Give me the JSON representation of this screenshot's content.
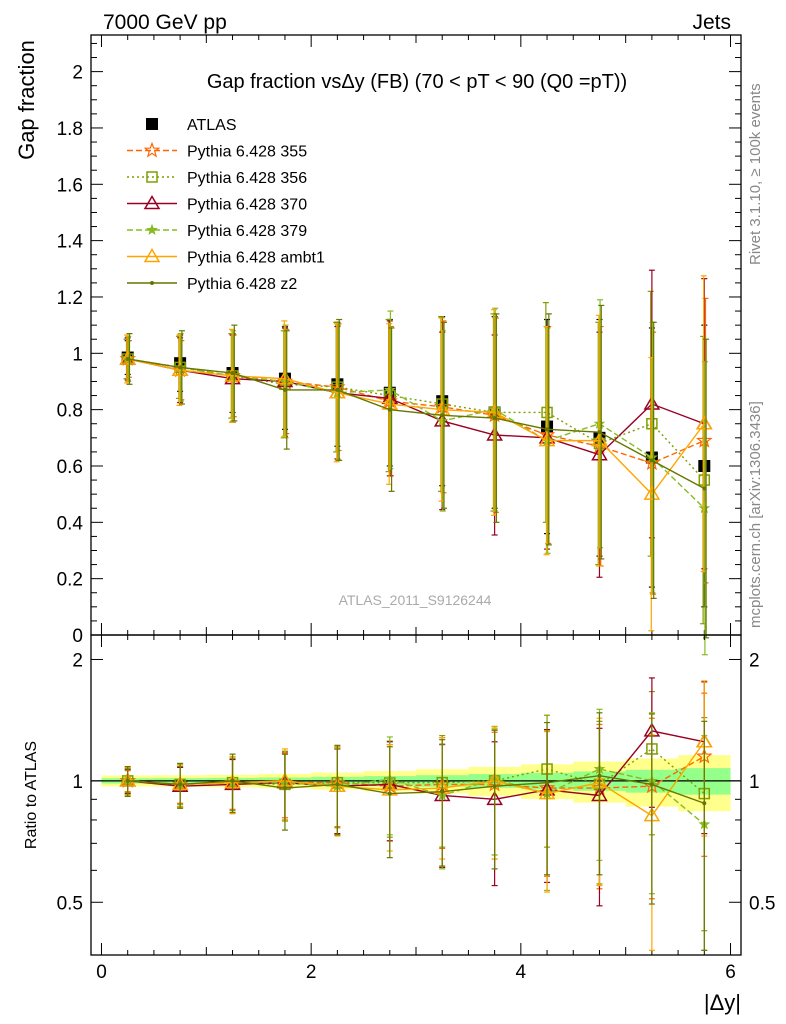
{
  "header": {
    "left": "7000 GeV pp",
    "right": "Jets"
  },
  "side_labels": {
    "rivet": "Rivet 3.1.10, ≥ 100k events",
    "mcplots": "mcplots.cern.ch [arXiv:1306.3436]"
  },
  "chart_data": [
    {
      "type": "line",
      "title": "Gap fraction vsΔy (FB) (70 < pT <  90 (Q0 =pT))",
      "xlabel": "|Δy|",
      "ylabel": "Gap fraction",
      "xlim": [
        -0.1,
        6.1
      ],
      "ylim": [
        0,
        2.13
      ],
      "yticks": [
        0,
        0.2,
        0.4,
        0.6,
        0.8,
        1,
        1.2,
        1.4,
        1.6,
        1.8,
        2
      ],
      "ytick_labels": [
        "0",
        "0.2",
        "0.4",
        "0.6",
        "0.8",
        "1",
        "1.2",
        "1.4",
        "1.6",
        "1.8",
        "2"
      ],
      "watermark": "ATLAS_2011_S9126244",
      "legend_position": "top-left",
      "x": [
        0.25,
        0.75,
        1.25,
        1.75,
        2.25,
        2.75,
        3.25,
        3.75,
        4.25,
        4.75,
        5.25,
        5.75
      ],
      "series": [
        {
          "name": "ATLAS",
          "color": "#000000",
          "style": "data",
          "marker": "square",
          "values": [
            0.985,
            0.965,
            0.93,
            0.91,
            0.89,
            0.86,
            0.83,
            0.79,
            0.74,
            0.7,
            0.63,
            0.6
          ]
        },
        {
          "name": "Pythia 6.428 355",
          "color": "#ff6600",
          "style": "dashed",
          "marker": "star",
          "values": [
            0.98,
            0.94,
            0.92,
            0.9,
            0.88,
            0.83,
            0.81,
            0.78,
            0.71,
            0.67,
            0.61,
            0.69
          ]
        },
        {
          "name": "Pythia 6.428 356",
          "color": "#7f9f00",
          "style": "dotted",
          "marker": "open-square",
          "values": [
            0.98,
            0.95,
            0.92,
            0.89,
            0.88,
            0.85,
            0.82,
            0.79,
            0.79,
            0.68,
            0.75,
            0.55
          ]
        },
        {
          "name": "Pythia 6.428 370",
          "color": "#990022",
          "style": "solid",
          "marker": "open-triangle",
          "values": [
            0.98,
            0.94,
            0.91,
            0.9,
            0.86,
            0.84,
            0.76,
            0.71,
            0.7,
            0.64,
            0.82,
            0.75
          ]
        },
        {
          "name": "Pythia 6.428 379",
          "color": "#88bb22",
          "style": "dashed",
          "marker": "small-star",
          "values": [
            0.98,
            0.95,
            0.92,
            0.9,
            0.86,
            0.87,
            0.76,
            0.8,
            0.69,
            0.75,
            0.63,
            0.45
          ]
        },
        {
          "name": "Pythia 6.428 ambt1",
          "color": "#ffa500",
          "style": "solid",
          "marker": "open-triangle",
          "values": [
            0.98,
            0.94,
            0.92,
            0.91,
            0.86,
            0.82,
            0.8,
            0.79,
            0.69,
            0.69,
            0.5,
            0.75
          ]
        },
        {
          "name": "Pythia 6.428 z2",
          "color": "#667700",
          "style": "solid",
          "marker": "dot",
          "values": [
            0.98,
            0.95,
            0.93,
            0.87,
            0.87,
            0.8,
            0.78,
            0.77,
            0.73,
            0.72,
            0.62,
            0.52
          ]
        }
      ]
    },
    {
      "type": "line",
      "title": "",
      "xlabel": "|Δy|",
      "ylabel": "Ratio to ATLAS",
      "xlim": [
        -0.1,
        6.1
      ],
      "ylim": [
        0.37,
        2.3
      ],
      "yticks": [
        0.5,
        1,
        2
      ],
      "ytick_labels": [
        "0.5",
        "1",
        "2"
      ],
      "xticks": [
        0,
        2,
        4,
        6
      ],
      "xtick_labels": [
        "0",
        "2",
        "4",
        "6"
      ],
      "x": [
        0.25,
        0.75,
        1.25,
        1.75,
        2.25,
        2.75,
        3.25,
        3.75,
        4.25,
        4.75,
        5.25,
        5.75
      ],
      "series": [
        {
          "name": "Pythia 6.428 355",
          "values": [
            1.0,
            0.98,
            0.99,
            0.99,
            0.99,
            0.97,
            0.98,
            0.98,
            0.96,
            0.96,
            0.97,
            1.15
          ]
        },
        {
          "name": "Pythia 6.428 356",
          "values": [
            1.0,
            0.98,
            0.99,
            0.98,
            0.99,
            0.99,
            0.99,
            1.0,
            1.07,
            0.98,
            1.2,
            0.93
          ]
        },
        {
          "name": "Pythia 6.428 370",
          "values": [
            1.0,
            0.97,
            0.98,
            0.99,
            0.97,
            0.98,
            0.92,
            0.9,
            0.95,
            0.92,
            1.33,
            1.25
          ]
        },
        {
          "name": "Pythia 6.428 379",
          "values": [
            1.0,
            0.98,
            0.99,
            0.99,
            0.97,
            1.01,
            0.92,
            1.01,
            0.93,
            1.07,
            1.0,
            0.78
          ]
        },
        {
          "name": "Pythia 6.428 ambt1",
          "values": [
            1.0,
            0.98,
            0.99,
            1.0,
            0.97,
            0.95,
            0.96,
            1.0,
            0.93,
            0.99,
            0.82,
            1.25
          ]
        },
        {
          "name": "Pythia 6.428 z2",
          "values": [
            1.0,
            0.98,
            1.0,
            0.96,
            0.98,
            0.93,
            0.94,
            0.97,
            0.99,
            1.03,
            0.98,
            0.88
          ]
        }
      ]
    }
  ]
}
